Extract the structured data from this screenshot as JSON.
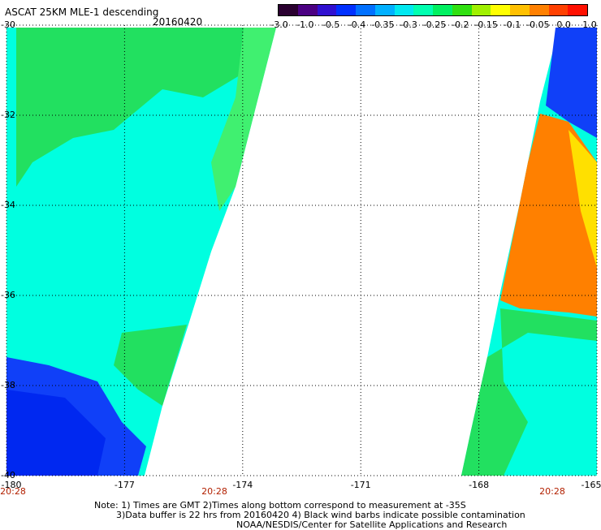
{
  "header": {
    "title": "ASCAT 25KM MLE-1 descending",
    "date": "20160420"
  },
  "colorbar": {
    "labels": [
      "-3.0",
      "-1.0",
      "-0.5",
      "-0.4",
      "-0.35",
      "-0.3",
      "-0.25",
      "-0.2",
      "-0.15",
      "-0.1",
      "-0.05",
      "0.0",
      "1.0"
    ],
    "colors": [
      "#2a0030",
      "#4b0082",
      "#3010d0",
      "#0030ff",
      "#0070ff",
      "#00b0ff",
      "#00e8f0",
      "#00ffb0",
      "#00f060",
      "#30e010",
      "#a0f000",
      "#ffff00",
      "#ffc000",
      "#ff8000",
      "#ff4000",
      "#ff1000"
    ]
  },
  "map": {
    "lat_labels": [
      "-30",
      "-32",
      "-34",
      "-36",
      "-38",
      "-40"
    ],
    "lon_labels": [
      "-180",
      "-177",
      "-174",
      "-171",
      "-168",
      "-165"
    ],
    "time_labels": [
      "20:28",
      "20:28",
      "20:28"
    ],
    "palette": {
      "green": "#22e060",
      "lightgreen": "#40f070",
      "cyan": "#00ffe0",
      "blue": "#1040f8",
      "deepblue": "#0028f0",
      "orange": "#ff8000",
      "yellow": "#ffe000"
    }
  },
  "notes": {
    "line1": "Note: 1) Times are GMT 2)Times along bottom correspond to measurement at -35S",
    "line2": "3)Data buffer is 22 hrs from 20160420 4) Black wind barbs indicate possible contamination",
    "line3": "NOAA/NESDIS/Center for Satellite Applications and Research"
  }
}
